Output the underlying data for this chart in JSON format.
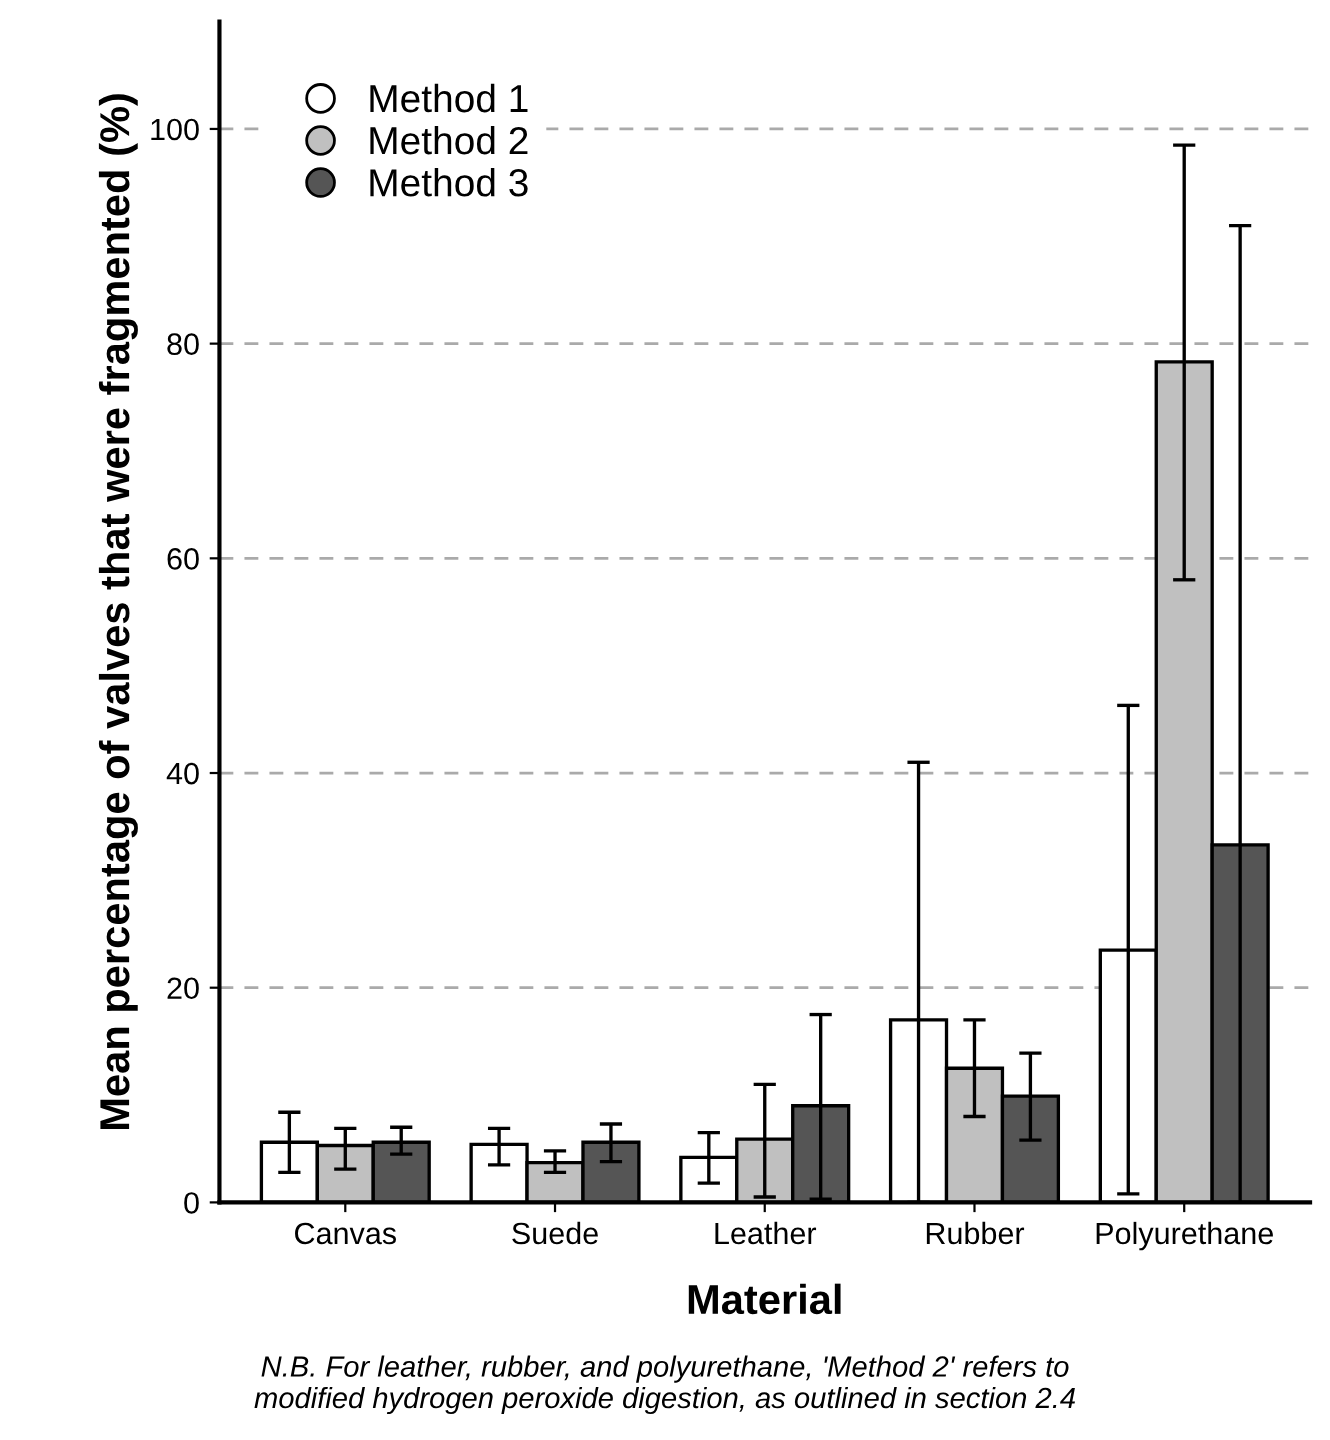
{
  "chart_data": {
    "type": "bar",
    "xlabel": "Material",
    "ylabel": "Mean percentage of valves that were fragmented (%)",
    "categories": [
      "Canvas",
      "Suede",
      "Leather",
      "Rubber",
      "Polyurethane"
    ],
    "series": [
      {
        "name": "Method 1",
        "color": "#ffffff",
        "values": [
          5.6,
          5.4,
          4.2,
          17.0,
          23.5
        ],
        "errors": [
          [
            2.8,
            8.4
          ],
          [
            3.5,
            6.9
          ],
          [
            1.8,
            6.5
          ],
          [
            0,
            41
          ],
          [
            0.8,
            46.3
          ]
        ]
      },
      {
        "name": "Method 2",
        "color": "#c0c0c0",
        "values": [
          5.3,
          3.7,
          5.9,
          12.5,
          78.3
        ],
        "errors": [
          [
            3.1,
            6.9
          ],
          [
            2.8,
            4.8
          ],
          [
            0.5,
            11
          ],
          [
            8,
            17
          ],
          [
            58,
            98.5
          ]
        ]
      },
      {
        "name": "Method 3",
        "color": "#555555",
        "values": [
          5.6,
          5.6,
          9.0,
          9.9,
          33.3
        ],
        "errors": [
          [
            4.5,
            7.0
          ],
          [
            3.8,
            7.3
          ],
          [
            0.3,
            17.5
          ],
          [
            5.8,
            13.9
          ],
          [
            0,
            91
          ]
        ]
      }
    ],
    "ylim": [
      0,
      110
    ],
    "yticks": [
      0,
      20,
      40,
      60,
      80,
      100
    ],
    "grid": "y",
    "legend": "top left",
    "annotations": [
      "N.B. For leather, rubber, and polyurethane, 'Method 2' refers to\nmodified hydrogen peroxide digestion, as outlined in section 2.4"
    ]
  }
}
